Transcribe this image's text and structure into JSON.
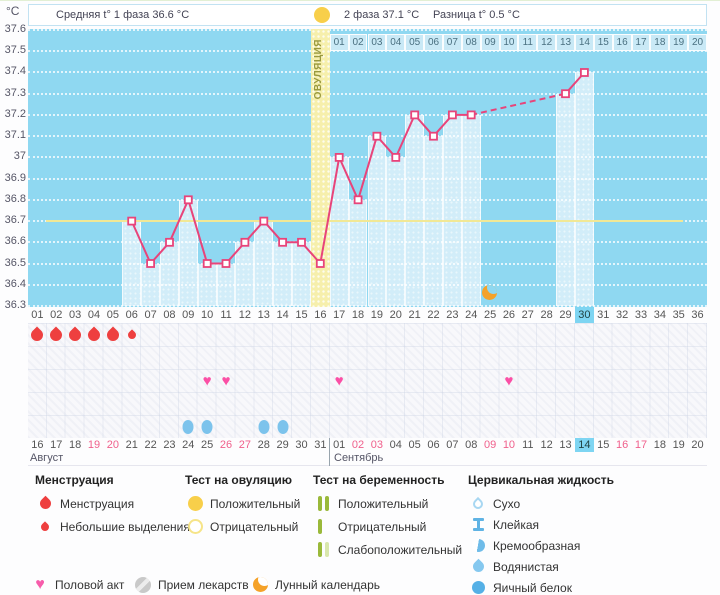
{
  "header": {
    "unit": "°C",
    "avg_phase1": "Средняя t° 1 фаза 36.6 °C",
    "phase2": "2 фаза 37.1 °C",
    "diff": "Разница t° 0.5 °C"
  },
  "colors": {
    "chart_bg": "#8fd8f1",
    "temp_column": "#d2edf9",
    "ovulation_column": "#f6efac",
    "temp_line": "#e8447a",
    "coverline": "#f1e896",
    "today_highlight": "#7ed5f2",
    "menstruation": "#ee3f3f",
    "heart": "#fb4fa5",
    "water": "#7cc3ec",
    "ovulation_test": "#f8cf4a",
    "pregnancy_test": "#9ab93a",
    "moon": "#f5a229"
  },
  "chart_data": {
    "type": "line",
    "ylabel": "°C",
    "ylim": [
      36.3,
      37.6
    ],
    "y_ticks": [
      "37.6",
      "37.5",
      "37.4",
      "37.3",
      "37.2",
      "37.1",
      "37",
      "36.9",
      "36.8",
      "36.7",
      "36.6",
      "36.5",
      "36.4",
      "36.3"
    ],
    "coverline": 36.7,
    "days_in_chart": 36,
    "current_cycle_day": 30,
    "ovulation": {
      "day": 16,
      "label": "ОВУЛЯЦИЯ",
      "test_positive": true
    },
    "temperatures": [
      {
        "day": 6,
        "t": 36.7
      },
      {
        "day": 7,
        "t": 36.5
      },
      {
        "day": 8,
        "t": 36.6
      },
      {
        "day": 9,
        "t": 36.8
      },
      {
        "day": 10,
        "t": 36.5
      },
      {
        "day": 11,
        "t": 36.5
      },
      {
        "day": 12,
        "t": 36.6
      },
      {
        "day": 13,
        "t": 36.7
      },
      {
        "day": 14,
        "t": 36.6
      },
      {
        "day": 15,
        "t": 36.6
      },
      {
        "day": 16,
        "t": 36.5
      },
      {
        "day": 17,
        "t": 37.0
      },
      {
        "day": 18,
        "t": 36.8
      },
      {
        "day": 19,
        "t": 37.1
      },
      {
        "day": 20,
        "t": 37.0
      },
      {
        "day": 21,
        "t": 37.2
      },
      {
        "day": 22,
        "t": 37.1
      },
      {
        "day": 23,
        "t": 37.2
      },
      {
        "day": 24,
        "t": 37.2
      },
      {
        "day": 29,
        "t": 37.3
      },
      {
        "day": 30,
        "t": 37.4
      }
    ],
    "dashed_gap": [
      24,
      29
    ],
    "dpo_row": {
      "start_day": 17,
      "labels": [
        "01",
        "02",
        "03",
        "04",
        "05",
        "06",
        "07",
        "08",
        "09",
        "10",
        "11",
        "12",
        "13",
        "14",
        "15",
        "16",
        "17",
        "18",
        "19",
        "20"
      ]
    },
    "day_labels": [
      "01",
      "02",
      "03",
      "04",
      "05",
      "06",
      "07",
      "08",
      "09",
      "10",
      "11",
      "12",
      "13",
      "14",
      "15",
      "16",
      "17",
      "18",
      "19",
      "20",
      "21",
      "22",
      "23",
      "24",
      "25",
      "26",
      "27",
      "28",
      "29",
      "30",
      "31",
      "32",
      "33",
      "34",
      "35",
      "36"
    ],
    "markers": {
      "menstruation_days": [
        1,
        2,
        3,
        4,
        5
      ],
      "spotting_days": [
        6
      ],
      "intercourse_days": [
        10,
        11,
        17,
        26
      ],
      "watery_days": [
        9,
        10,
        13,
        14
      ],
      "moon_day": 25
    },
    "dates": [
      {
        "label": "16"
      },
      {
        "label": "17"
      },
      {
        "label": "18"
      },
      {
        "label": "19",
        "weekend": true
      },
      {
        "label": "20",
        "weekend": true
      },
      {
        "label": "21"
      },
      {
        "label": "22"
      },
      {
        "label": "23"
      },
      {
        "label": "24"
      },
      {
        "label": "25"
      },
      {
        "label": "26",
        "weekend": true
      },
      {
        "label": "27",
        "weekend": true
      },
      {
        "label": "28"
      },
      {
        "label": "29"
      },
      {
        "label": "30"
      },
      {
        "label": "31"
      },
      {
        "label": "01"
      },
      {
        "label": "02",
        "weekend": true
      },
      {
        "label": "03",
        "weekend": true
      },
      {
        "label": "04"
      },
      {
        "label": "05"
      },
      {
        "label": "06"
      },
      {
        "label": "07"
      },
      {
        "label": "08"
      },
      {
        "label": "09",
        "weekend": true
      },
      {
        "label": "10",
        "weekend": true
      },
      {
        "label": "11"
      },
      {
        "label": "12"
      },
      {
        "label": "13"
      },
      {
        "label": "14",
        "today": true
      },
      {
        "label": "15"
      },
      {
        "label": "16",
        "weekend": true
      },
      {
        "label": "17",
        "weekend": true
      },
      {
        "label": "18"
      },
      {
        "label": "19"
      },
      {
        "label": "20"
      }
    ],
    "months": [
      {
        "name": "Август",
        "start_col": 1
      },
      {
        "name": "Сентябрь",
        "start_col": 17
      }
    ]
  },
  "legend": {
    "sections": [
      {
        "title": "Менструация",
        "items": [
          {
            "icon": "drop-red",
            "label": "Менструация"
          },
          {
            "icon": "drop-red-small",
            "label": "Небольшие выделения"
          }
        ]
      },
      {
        "title": "Тест на овуляцию",
        "items": [
          {
            "icon": "circle-filled",
            "label": "Положительный"
          },
          {
            "icon": "circle-outline",
            "label": "Отрицательный"
          }
        ]
      },
      {
        "title": "Тест на беременность",
        "items": [
          {
            "icon": "bars-2",
            "label": "Положительный"
          },
          {
            "icon": "bars-1",
            "label": "Отрицательный"
          },
          {
            "icon": "bars-weak",
            "label": "Слабоположительный"
          }
        ]
      },
      {
        "title": "Цервикальная жидкость",
        "items": [
          {
            "icon": "drop-outline",
            "label": "Сухо"
          },
          {
            "icon": "sticky",
            "label": "Клейкая"
          },
          {
            "icon": "creamy",
            "label": "Кремообразная"
          },
          {
            "icon": "drop-light",
            "label": "Водянистая"
          },
          {
            "icon": "drop-solid",
            "label": "Яичный белок"
          }
        ]
      }
    ],
    "footer": [
      {
        "icon": "heart",
        "label": "Половой акт"
      },
      {
        "icon": "pill",
        "label": "Прием лекарств"
      },
      {
        "icon": "moon",
        "label": "Лунный календарь"
      }
    ]
  }
}
